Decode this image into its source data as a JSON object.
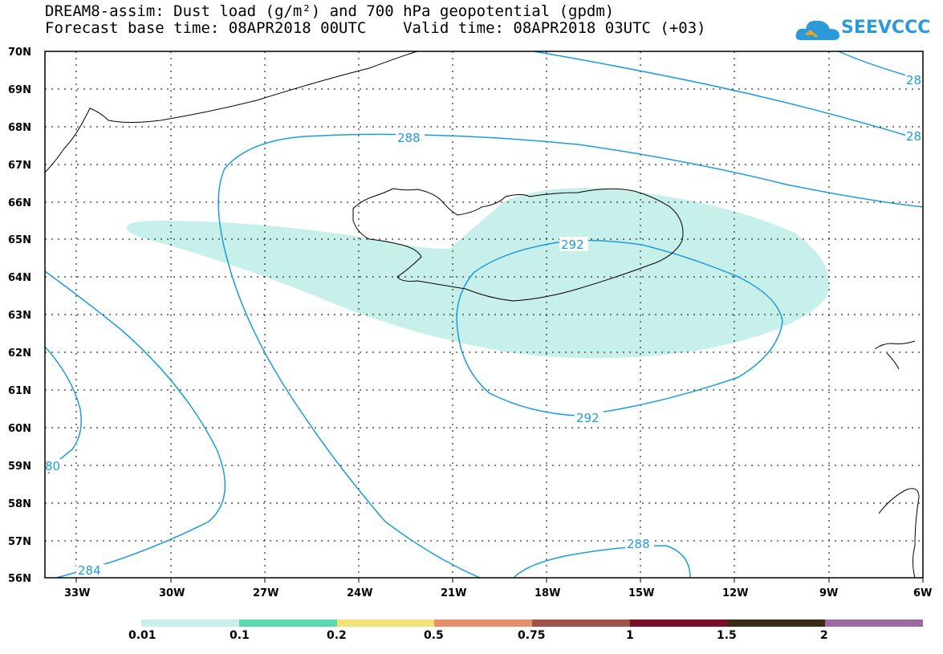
{
  "header": {
    "title_line1": "DREAM8-assim: Dust load (g/m²) and 700 hPa geopotential (gpdm)",
    "title_line2": "Forecast base time: 08APR2018 00UTC    Valid time: 08APR2018 03UTC (+03)"
  },
  "logo": {
    "text": "SEEVCCC",
    "icon": "cloud-icon",
    "color": "#2a9bd8"
  },
  "map": {
    "lat_labels": [
      "70N",
      "69N",
      "68N",
      "67N",
      "66N",
      "65N",
      "64N",
      "63N",
      "62N",
      "61N",
      "60N",
      "59N",
      "58N",
      "57N",
      "56N"
    ],
    "lon_labels": [
      "33W",
      "30W",
      "27W",
      "24W",
      "21W",
      "18W",
      "15W",
      "12W",
      "9W",
      "6W"
    ],
    "contour_labels": {
      "c288_top": "288",
      "c292_top": "292",
      "c292_bottom": "292",
      "c288_bottom": "288",
      "c284": "284",
      "c280": "80",
      "c28a": "28",
      "c28b": "28"
    },
    "colors": {
      "contour": "#1d9be0",
      "dust_fill": "#c8f0ea",
      "coast": "#000000"
    }
  },
  "colorbar": {
    "colors": [
      "#c8f0ea",
      "#5ad8b0",
      "#f2e278",
      "#e8906c",
      "#a0524a",
      "#7a0f2a",
      "#3c2a14",
      "#9a6aa0"
    ],
    "labels": [
      "0.01",
      "0.1",
      "0.2",
      "0.5",
      "0.75",
      "1",
      "1.5",
      "2"
    ]
  }
}
